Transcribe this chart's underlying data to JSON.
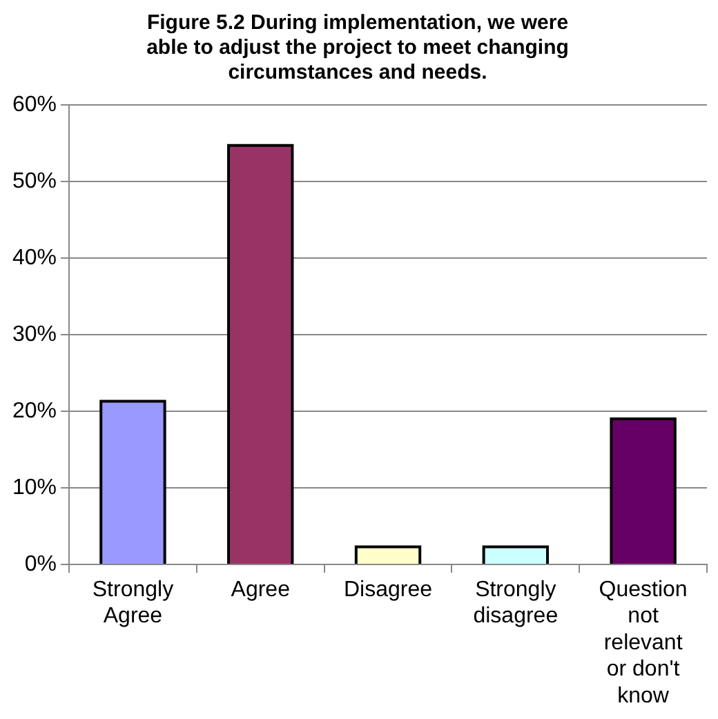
{
  "chart_data": {
    "type": "bar",
    "title": "Figure 5.2  During implementation, we were able to adjust the project to meet changing circumstances and needs.",
    "categories": [
      "Strongly Agree",
      "Agree",
      "Disagree",
      "Strongly disagree",
      "Question not relevant or don't know"
    ],
    "values": [
      21.3,
      54.7,
      2.3,
      2.3,
      19
    ],
    "colors": [
      "#9999ff",
      "#993366",
      "#ffffcc",
      "#ccffff",
      "#660066"
    ],
    "ylim": [
      0,
      60
    ],
    "yticks": [
      {
        "value": 0,
        "label": "0%"
      },
      {
        "value": 10,
        "label": "10%"
      },
      {
        "value": 20,
        "label": "20%"
      },
      {
        "value": 30,
        "label": "30%"
      },
      {
        "value": 40,
        "label": "40%"
      },
      {
        "value": 50,
        "label": "50%"
      },
      {
        "value": 60,
        "label": "60%"
      }
    ],
    "grid": "y",
    "legend": false
  }
}
